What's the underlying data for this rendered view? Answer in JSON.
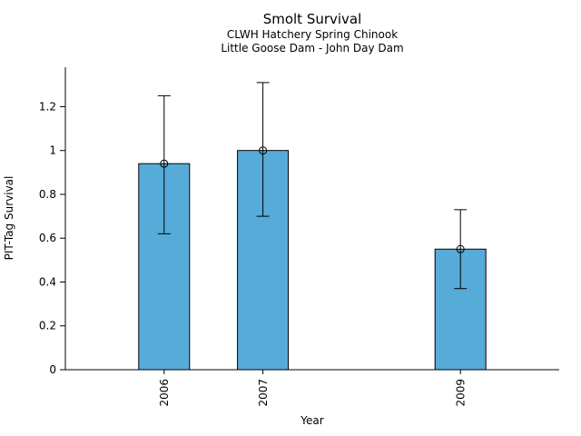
{
  "chart_data": {
    "type": "bar",
    "title": "Smolt Survival",
    "subtitle1": "CLWH Hatchery Spring Chinook",
    "subtitle2": "Little Goose Dam - John Day Dam",
    "xlabel": "Year",
    "ylabel": "PIT-Tag Survival",
    "categories": [
      "2006",
      "2007",
      "2009"
    ],
    "x_numeric": [
      2006,
      2007,
      2009
    ],
    "values": [
      0.94,
      1.0,
      0.55
    ],
    "error_low": [
      0.62,
      0.7,
      0.37
    ],
    "error_high": [
      1.25,
      1.31,
      0.73
    ],
    "yticks": [
      0,
      0.2,
      0.4,
      0.6,
      0.8,
      1,
      1.2
    ],
    "ytick_labels": [
      "0",
      "0.2",
      "0.4",
      "0.6",
      "0.8",
      "1",
      "1.2"
    ],
    "ylim": [
      0,
      1.38
    ],
    "xlim": [
      2005,
      2010
    ],
    "xtick_rotation_deg": -90,
    "marker": "open-circle",
    "colors": {
      "bar_fill": "#57ABD9",
      "bar_edge": "#000000",
      "error_bar": "#000000",
      "text": "#000000",
      "background": "#ffffff"
    },
    "legend": "none",
    "grid": "off"
  }
}
